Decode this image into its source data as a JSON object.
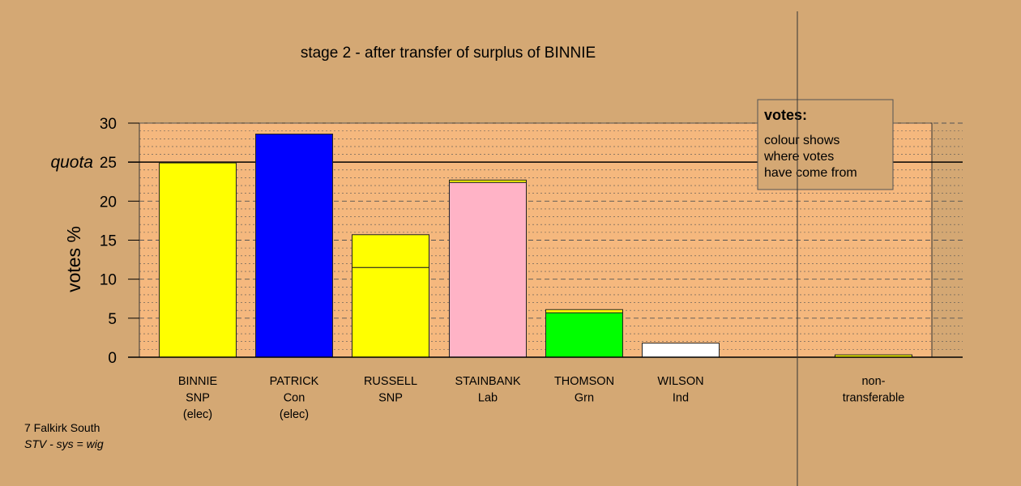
{
  "chart_data": {
    "type": "bar",
    "title": "stage 2 - after transfer of surplus of BINNIE",
    "ylabel": "votes %",
    "ylim": [
      0,
      30
    ],
    "yticks": [
      0,
      5,
      10,
      15,
      20,
      25,
      30
    ],
    "quota": 25,
    "quota_label": "quota",
    "grid": true,
    "stacked": true,
    "candidates": [
      {
        "lines": [
          "BINNIE",
          "SNP",
          "(elec)"
        ],
        "segments": [
          {
            "value": 24.9,
            "color": "#ffff00"
          }
        ]
      },
      {
        "lines": [
          "PATRICK",
          "Con",
          "(elec)"
        ],
        "segments": [
          {
            "value": 28.6,
            "color": "#0000ff"
          }
        ]
      },
      {
        "lines": [
          "RUSSELL",
          "SNP"
        ],
        "segments": [
          {
            "value": 11.5,
            "color": "#ffff00"
          },
          {
            "value": 4.2,
            "color": "#ffff00"
          }
        ]
      },
      {
        "lines": [
          "STAINBANK",
          "Lab"
        ],
        "segments": [
          {
            "value": 22.4,
            "color": "#ffb3c6"
          },
          {
            "value": 0.3,
            "color": "#ffff00"
          }
        ]
      },
      {
        "lines": [
          "THOMSON",
          "Grn"
        ],
        "segments": [
          {
            "value": 5.7,
            "color": "#00ff00"
          },
          {
            "value": 0.4,
            "color": "#ffff00"
          }
        ]
      },
      {
        "lines": [
          "WILSON",
          "Ind"
        ],
        "segments": [
          {
            "value": 1.8,
            "color": "#ffffff"
          }
        ]
      }
    ],
    "nontransferable": {
      "lines": [
        "non-",
        "transferable"
      ],
      "segments": [
        {
          "value": 0.3,
          "color": "#ffff00"
        }
      ]
    },
    "legend": {
      "title": "votes:",
      "lines": [
        "colour shows",
        "where votes",
        "have come from"
      ],
      "position": "top-right"
    },
    "colors": {
      "background": "#d4a874",
      "plot_background": "#f5b87e",
      "grid": "#555555"
    }
  },
  "footer": {
    "line1": "7 Falkirk South",
    "line2": "STV - sys = wig"
  }
}
